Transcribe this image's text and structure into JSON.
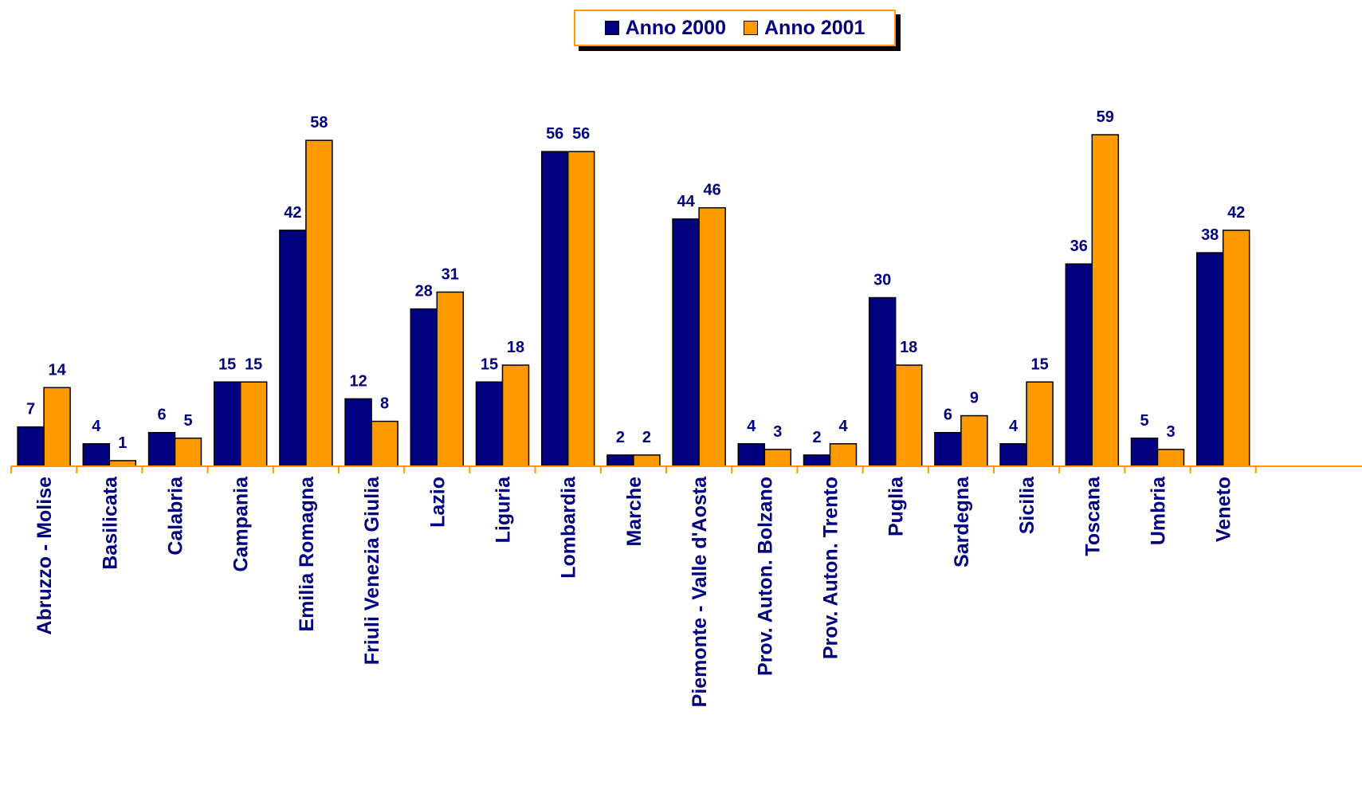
{
  "chart_data": {
    "type": "bar",
    "categories": [
      "Abruzzo - Molise",
      "Basilicata",
      "Calabria",
      "Campania",
      "Emilia Romagna",
      "Friuli Venezia Giulia",
      "Lazio",
      "Liguria",
      "Lombardia",
      "Marche",
      "Piemonte - Valle d'Aosta",
      "Prov. Auton. Bolzano",
      "Prov. Auton. Trento",
      "Puglia",
      "Sardegna",
      "Sicilia",
      "Toscana",
      "Umbria",
      "Veneto"
    ],
    "series": [
      {
        "name": "Anno 2000",
        "color": "#000080",
        "values": [
          7,
          4,
          6,
          15,
          42,
          12,
          28,
          15,
          56,
          2,
          44,
          4,
          2,
          30,
          6,
          4,
          36,
          5,
          38
        ]
      },
      {
        "name": "Anno 2001",
        "color": "#ff9900",
        "values": [
          14,
          1,
          5,
          15,
          58,
          8,
          31,
          18,
          56,
          2,
          46,
          3,
          4,
          18,
          9,
          15,
          59,
          3,
          42
        ]
      }
    ],
    "ylim": [
      0,
      60
    ],
    "grid": false,
    "legend_position": "top-center",
    "data_labels": true,
    "title": "",
    "xlabel": "",
    "ylabel": ""
  }
}
